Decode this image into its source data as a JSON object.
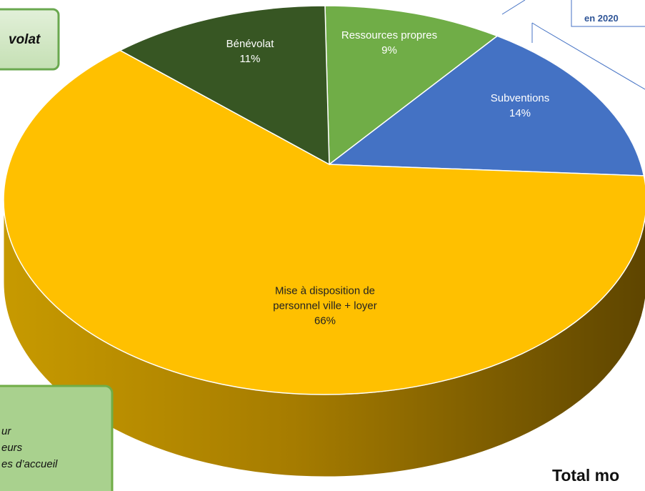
{
  "chart_data": {
    "type": "pie",
    "categories": [
      "Ressources propres",
      "Subventions",
      "Mise à disposition de personnel ville + loyer",
      "Bénévolat"
    ],
    "values": [
      9,
      14,
      66,
      11
    ],
    "value_labels": [
      "9%",
      "14%",
      "66%",
      "11%"
    ],
    "colors": [
      "#70ad47",
      "#4472c4",
      "#ffc000",
      "#375623"
    ],
    "annotations": [
      "volat",
      "en 2020",
      "ur",
      "eurs",
      "es d’accueil",
      "Total mo"
    ]
  }
}
